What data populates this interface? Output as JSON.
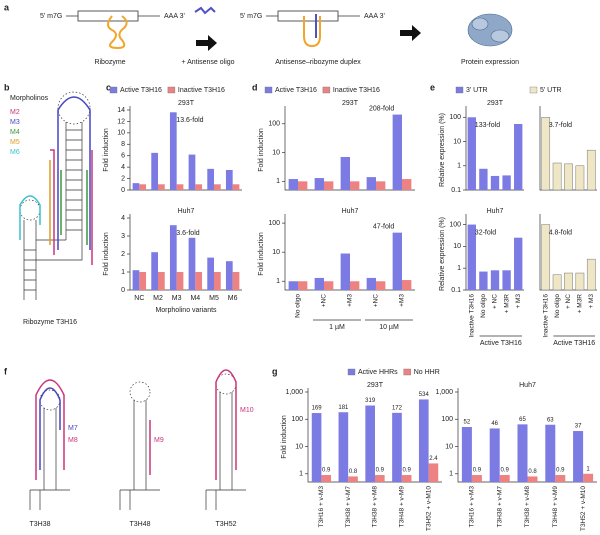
{
  "figure": {
    "panel_labels": [
      "a",
      "b",
      "c",
      "d",
      "e",
      "f",
      "g"
    ],
    "panel_a": {
      "construct_labels": [
        "5' m7G",
        "AAA 3'",
        "5' m7G",
        "AAA 3'"
      ],
      "step_labels": [
        "Ribozyme",
        "+ Antisense oligo",
        "Antisense–ribozyme duplex",
        "Protein expression"
      ]
    },
    "panel_b": {
      "title": "Morpholinos",
      "morpholinos": [
        "M2",
        "M3",
        "M4",
        "M5",
        "M6"
      ],
      "caption": "Ribozyme T3H16"
    },
    "panel_f": {
      "oligos": [
        "M7",
        "M8",
        "M9",
        "M10"
      ],
      "captions": [
        "T3H38",
        "T3H48",
        "T3H52"
      ]
    }
  },
  "chart_data": [
    {
      "type": "bar",
      "subtitle": "293T",
      "ylabel": "Fold induction",
      "annotation": "13.6-fold",
      "series": [
        {
          "name": "Active T3H16",
          "color": "#7b7be3",
          "values": [
            1.2,
            6.5,
            13.6,
            6.2,
            3.7,
            3.5
          ]
        },
        {
          "name": "Inactive T3H16",
          "color": "#ec8282",
          "values": [
            1,
            1,
            1,
            1,
            1,
            1
          ]
        }
      ],
      "ylim": [
        0,
        14
      ],
      "yticks": [
        0,
        2,
        4,
        6,
        8,
        10,
        12,
        14
      ],
      "log": false
    },
    {
      "type": "bar",
      "subtitle": "Huh7",
      "ylabel": "Fold induction",
      "annotation": "3.6-fold",
      "xlabel": "Morpholino variants",
      "categories": [
        "NC",
        "M2",
        "M3",
        "M4",
        "M5",
        "M6"
      ],
      "series": [
        {
          "color": "#7b7be3",
          "values": [
            1.1,
            2.1,
            3.6,
            2.9,
            1.8,
            1.6
          ]
        },
        {
          "color": "#ec8282",
          "values": [
            1,
            1,
            1,
            1,
            1,
            1
          ]
        }
      ],
      "ylim": [
        0,
        4
      ],
      "yticks": [
        0,
        1,
        2,
        3,
        4
      ],
      "log": false
    },
    {
      "type": "bar",
      "subtitle": "293T",
      "ylabel": "Fold induction",
      "annotation": "208-fold",
      "series": [
        {
          "name": "Active T3H16",
          "color": "#7b7be3",
          "values": [
            1.2,
            1.3,
            7,
            1.4,
            208
          ]
        },
        {
          "name": "Inactive T3H16",
          "color": "#ec8282",
          "values": [
            1,
            1,
            1,
            1,
            1.2
          ]
        }
      ],
      "ylim": [
        0.5,
        300
      ],
      "yticks": [
        1,
        10,
        100
      ],
      "log": true
    },
    {
      "type": "bar",
      "subtitle": "Huh7",
      "ylabel": "Fold induction",
      "annotation": "47-fold",
      "categories": [
        "No oligo",
        "+NC",
        "+M3",
        "+NC",
        "+M3"
      ],
      "x_group_labels": [
        "1 µM",
        "10 µM"
      ],
      "series": [
        {
          "color": "#7b7be3",
          "values": [
            1,
            1.3,
            9,
            1.3,
            47
          ]
        },
        {
          "color": "#ec8282",
          "values": [
            1,
            1,
            1,
            1,
            1.1
          ]
        }
      ],
      "ylim": [
        0.5,
        150
      ],
      "yticks": [
        1,
        10,
        100
      ],
      "log": true
    },
    {
      "type": "bar",
      "subtitle": "293T",
      "ylabel": "Relative expression (%)",
      "annotation": "133-fold",
      "series": [
        {
          "name": "3' UTR",
          "color": "#7b7be3",
          "values": [
            100,
            0.75,
            0.38,
            0.4,
            53
          ]
        }
      ],
      "ylim": [
        0.1,
        200
      ],
      "yticks": [
        0.1,
        1,
        10,
        100
      ],
      "log": true
    },
    {
      "type": "bar",
      "annotation": "3.7-fold",
      "series": [
        {
          "name": "5' UTR",
          "color": "#efe6c6",
          "values": [
            100,
            1.3,
            1.2,
            1.0,
            4.4
          ]
        }
      ],
      "ylim": [
        0.1,
        200
      ],
      "log": true
    },
    {
      "type": "bar",
      "subtitle": "Huh7",
      "ylabel": "Relative expression (%)",
      "annotation": "32-fold",
      "categories": [
        "Inactive T3H16",
        "No oligo",
        "+ NC",
        "+ M3R",
        "+ M3"
      ],
      "x_group_labels": [
        "Active T3H16"
      ],
      "series": [
        {
          "color": "#7b7be3",
          "values": [
            100,
            0.7,
            0.8,
            0.8,
            25
          ]
        }
      ],
      "ylim": [
        0.1,
        200
      ],
      "yticks": [
        0.1,
        1,
        10,
        100
      ],
      "log": true
    },
    {
      "type": "bar",
      "annotation": "4.8-fold",
      "categories": [
        "Inactive T3H16",
        "No oligo",
        "+ NC",
        "+ M3R",
        "+ M3"
      ],
      "x_group_labels": [
        "Active T3H16"
      ],
      "series": [
        {
          "color": "#efe6c6",
          "values": [
            100,
            0.5,
            0.6,
            0.6,
            2.6
          ]
        }
      ],
      "ylim": [
        0.1,
        200
      ],
      "log": true
    },
    {
      "type": "bar",
      "subtitle": "293T",
      "ylabel": "Fold induction",
      "data_labels": true,
      "categories": [
        "T3H16 + v-M3",
        "T3H38 + v-M7",
        "T3H38 + v-M8",
        "T3H48 + v-M9",
        "T3H52 + v-M10"
      ],
      "series": [
        {
          "name": "Active HHRs",
          "color": "#7b7be3",
          "values": [
            169,
            181,
            319,
            172,
            534
          ]
        },
        {
          "name": "No HHR",
          "color": "#ec8282",
          "values": [
            0.9,
            0.8,
            0.9,
            0.9,
            2.4
          ]
        }
      ],
      "ylim": [
        0.5,
        1000
      ],
      "yticks": [
        1,
        10,
        100,
        {
          "value": 1000,
          "label": "1,000"
        }
      ],
      "log": true
    },
    {
      "type": "bar",
      "subtitle": "Huh7",
      "data_labels": true,
      "categories": [
        "T3H16 + v-M3",
        "T3H38 + v-M7",
        "T3H38 + v-M8",
        "T3H48 + v-M9",
        "T3H52 + v-M10"
      ],
      "series": [
        {
          "color": "#7b7be3",
          "values": [
            52,
            46,
            65,
            63,
            37
          ]
        },
        {
          "color": "#ec8282",
          "values": [
            0.9,
            0.9,
            0.8,
            0.9,
            1.0
          ]
        }
      ],
      "ylim": [
        0.5,
        1000
      ],
      "yticks": [
        1,
        10,
        100,
        {
          "value": 1000,
          "label": "1,000"
        }
      ],
      "log": true
    }
  ]
}
